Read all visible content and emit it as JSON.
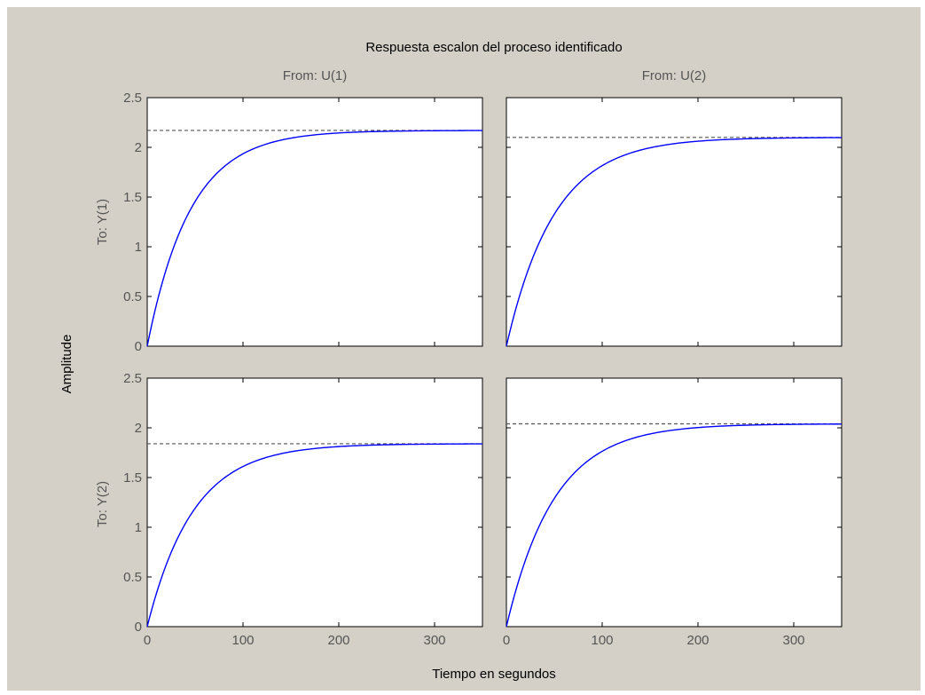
{
  "figure": {
    "title": "Respuesta escalon del proceso identificado",
    "ylabel": "Amplitude",
    "xlabel": "Tiempo en segundos",
    "column_labels": [
      "From: U(1)",
      "From: U(2)"
    ],
    "row_labels": [
      "To: Y(1)",
      "To: Y(2)"
    ],
    "background_color": "#d4d0c8",
    "axes_color": "#ffffff",
    "response_color": "#0000ff",
    "steady_state_line_color": "#555555"
  },
  "chart_data": {
    "type": "line",
    "xlim": [
      0,
      350
    ],
    "ylim": [
      0,
      2.5
    ],
    "xticks": [
      0,
      100,
      200,
      300
    ],
    "yticks": [
      0,
      0.5,
      1,
      1.5,
      2,
      2.5
    ],
    "grid": false,
    "subplots": [
      {
        "from": "From: U(1)",
        "to": "To: Y(1)",
        "steady_state": 2.17,
        "time_constant": 45,
        "x": [
          0,
          25,
          50,
          75,
          100,
          125,
          150,
          200,
          250,
          300,
          350
        ],
        "y": [
          0,
          0.93,
          1.45,
          1.75,
          1.92,
          2.04,
          2.1,
          2.15,
          2.16,
          2.17,
          2.17
        ]
      },
      {
        "from": "From: U(2)",
        "to": "To: Y(1)",
        "steady_state": 2.1,
        "time_constant": 50,
        "x": [
          0,
          25,
          50,
          75,
          100,
          125,
          150,
          200,
          250,
          300,
          350
        ],
        "y": [
          0,
          0.83,
          1.33,
          1.63,
          1.82,
          1.93,
          1.99,
          2.06,
          2.08,
          2.09,
          2.09
        ]
      },
      {
        "from": "From: U(1)",
        "to": "To: Y(2)",
        "steady_state": 1.84,
        "time_constant": 48,
        "x": [
          0,
          25,
          50,
          75,
          100,
          125,
          150,
          200,
          250,
          300,
          350
        ],
        "y": [
          0,
          0.75,
          1.19,
          1.46,
          1.61,
          1.71,
          1.76,
          1.81,
          1.83,
          1.83,
          1.83
        ]
      },
      {
        "from": "From: U(2)",
        "to": "To: Y(2)",
        "steady_state": 2.04,
        "time_constant": 50,
        "x": [
          0,
          25,
          50,
          75,
          100,
          125,
          150,
          200,
          250,
          300,
          350
        ],
        "y": [
          0,
          0.8,
          1.28,
          1.58,
          1.77,
          1.88,
          1.94,
          2.0,
          2.03,
          2.04,
          2.04
        ]
      }
    ]
  }
}
